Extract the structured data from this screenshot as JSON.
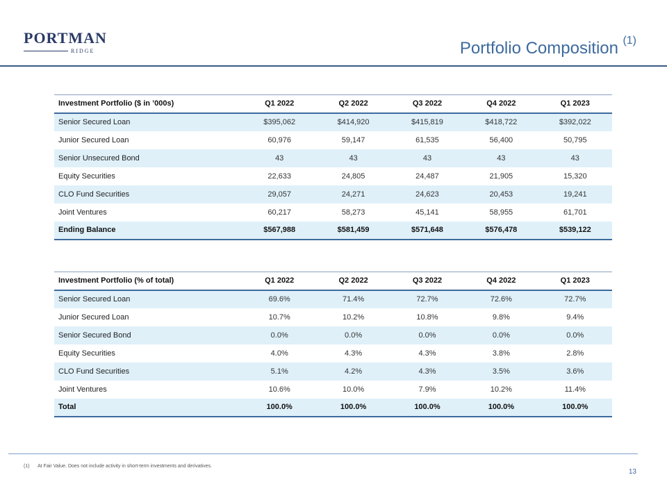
{
  "logo": {
    "main": "PORTMAN",
    "sub": "RIDGE"
  },
  "header": {
    "title": "Portfolio Composition",
    "title_note": "(1)"
  },
  "table1": {
    "columns": [
      "Investment Portfolio ($ in ’000s)",
      "Q1 2022",
      "Q2 2022",
      "Q3 2022",
      "Q4 2022",
      "Q1 2023"
    ],
    "rows": [
      [
        "Senior Secured Loan",
        "$395,062",
        "$414,920",
        "$415,819",
        "$418,722",
        "$392,022"
      ],
      [
        "Junior Secured Loan",
        "60,976",
        "59,147",
        "61,535",
        "56,400",
        "50,795"
      ],
      [
        "Senior Unsecured Bond",
        "43",
        "43",
        "43",
        "43",
        "43"
      ],
      [
        "Equity Securities",
        "22,633",
        "24,805",
        "24,487",
        "21,905",
        "15,320"
      ],
      [
        "CLO Fund Securities",
        "29,057",
        "24,271",
        "24,623",
        "20,453",
        "19,241"
      ],
      [
        "Joint Ventures",
        "60,217",
        "58,273",
        "45,141",
        "58,955",
        "61,701"
      ],
      [
        "Ending Balance",
        "$567,988",
        "$581,459",
        "$571,648",
        "$576,478",
        "$539,122"
      ]
    ]
  },
  "table2": {
    "columns": [
      "Investment Portfolio (% of total)",
      "Q1 2022",
      "Q2 2022",
      "Q3 2022",
      "Q4 2022",
      "Q1 2023"
    ],
    "rows": [
      [
        "Senior Secured Loan",
        "69.6%",
        "71.4%",
        "72.7%",
        "72.6%",
        "72.7%"
      ],
      [
        "Junior Secured Loan",
        "10.7%",
        "10.2%",
        "10.8%",
        "9.8%",
        "9.4%"
      ],
      [
        "Senior Secured Bond",
        "0.0%",
        "0.0%",
        "0.0%",
        "0.0%",
        "0.0%"
      ],
      [
        "Equity Securities",
        "4.0%",
        "4.3%",
        "4.3%",
        "3.8%",
        "2.8%"
      ],
      [
        "CLO Fund Securities",
        "5.1%",
        "4.2%",
        "4.3%",
        "3.5%",
        "3.6%"
      ],
      [
        "Joint Ventures",
        "10.6%",
        "10.0%",
        "7.9%",
        "10.2%",
        "11.4%"
      ],
      [
        "Total",
        "100.0%",
        "100.0%",
        "100.0%",
        "100.0%",
        "100.0%"
      ]
    ]
  },
  "footer": {
    "note_number": "(1)",
    "note_text": "At Fair Value. Does not include activity in short-term investments and derivatives.",
    "page_number": "13"
  }
}
